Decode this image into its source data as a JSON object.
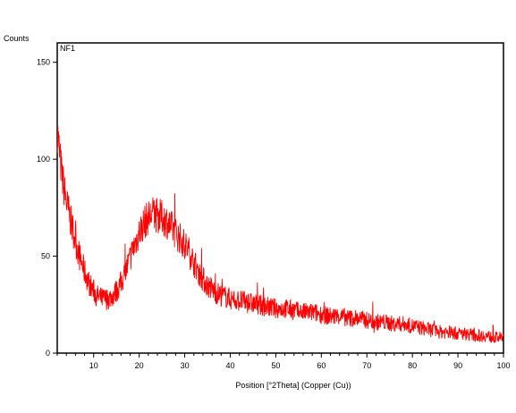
{
  "chart_data": {
    "type": "line",
    "title": "",
    "xlabel": "Position [°2Theta] (Copper (Cu))",
    "ylabel": "Counts",
    "panel_label": "NF1",
    "xlim": [
      2,
      100
    ],
    "ylim": [
      0,
      160
    ],
    "x_ticks": [
      10,
      20,
      30,
      40,
      50,
      60,
      70,
      80,
      90,
      100
    ],
    "y_ticks": [
      0,
      50,
      100,
      150
    ],
    "x_minor_step": 2,
    "grid": false,
    "series": [
      {
        "color": "#ff0000",
        "x": [
          2,
          3,
          4,
          5,
          6,
          7,
          8,
          9,
          10,
          11,
          12,
          13,
          14,
          15,
          16,
          17,
          18,
          19,
          20,
          21,
          22,
          23,
          24,
          25,
          26,
          27,
          28,
          29,
          30,
          31,
          32,
          33,
          34,
          35,
          36,
          37,
          38,
          39,
          40,
          42,
          44,
          46,
          48,
          50,
          52,
          54,
          56,
          58,
          60,
          62,
          64,
          66,
          68,
          70,
          72,
          74,
          76,
          78,
          80,
          82,
          84,
          86,
          88,
          90,
          92,
          94,
          96,
          98,
          100
        ],
        "values": [
          115,
          92,
          78,
          68,
          58,
          49,
          42,
          36,
          32,
          29,
          28,
          28,
          29,
          32,
          36,
          42,
          49,
          56,
          62,
          67,
          70,
          72,
          71,
          70,
          68,
          65,
          62,
          59,
          56,
          52,
          47,
          42,
          38,
          35,
          33,
          31,
          30,
          29,
          28,
          27,
          26,
          25,
          24,
          23,
          23,
          22,
          21,
          21,
          20,
          19,
          19,
          18,
          18,
          17,
          16,
          16,
          15,
          15,
          14,
          13,
          12,
          11,
          11,
          10,
          10,
          9,
          9,
          8,
          8
        ],
        "noise_amplitude": 6
      }
    ]
  }
}
